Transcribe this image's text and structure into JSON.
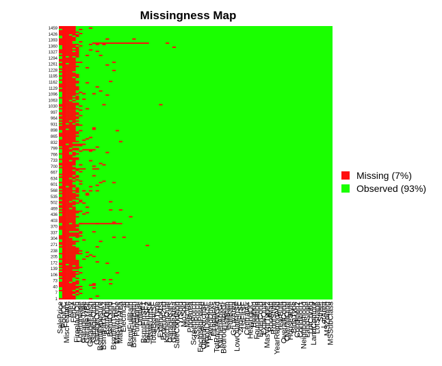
{
  "chart_data": {
    "type": "heatmap",
    "title": "Missingness Map",
    "xlabel": "",
    "ylabel": "",
    "n_rows": 1460,
    "columns": [
      "SalePrice",
      "PoolQC",
      "MiscFeature",
      "Alley",
      "Fence",
      "FireplaceQu",
      "LotFrontage",
      "GarageType",
      "GarageYrBlt",
      "GarageFinish",
      "GarageQual",
      "GarageCond",
      "BsmtExposure",
      "BsmtFinType2",
      "BsmtQual",
      "BsmtCond",
      "BsmtFinType1",
      "MasVnrType",
      "MasVnrArea",
      "Electrical",
      "Id",
      "BsmtFullBath",
      "BsmtHalfBath",
      "Functional",
      "Utilities",
      "BsmtFinSF1",
      "BsmtFinSF2",
      "BsmtUnfSF",
      "TotalBsmtSF",
      "SaleType",
      "Exterior1st",
      "Exterior2nd",
      "KitchenQual",
      "GarageCars",
      "GarageArea",
      "SaleCondition",
      "YrSold",
      "MoSold",
      "MiscVal",
      "PoolArea",
      "ScreenPorch",
      "3SsnPorch",
      "EnclosedPorch",
      "OpenPorchSF",
      "WoodDeckSF",
      "PavedDrive",
      "Fireplaces",
      "TotRmsAbvGrd",
      "KitchenAbvGr",
      "BedroomAbvGr",
      "HalfBath",
      "FullBath",
      "GrLivArea",
      "LowQualFinSF",
      "2ndFlrSF",
      "1stFlrSF",
      "CentralAir",
      "HeatingQC",
      "Heating",
      "Foundation",
      "ExterCond",
      "ExterQual",
      "MasVnrType2",
      "RoofMatl",
      "RoofStyle",
      "YearRemodAdd",
      "YearBuilt",
      "OverallCond",
      "OverallQual",
      "HouseStyle",
      "BldgType",
      "Condition2",
      "Condition1",
      "Neighborhood",
      "LandSlope",
      "LotConfig",
      "LandContour",
      "LotShape",
      "Street",
      "LotArea",
      "MSZoning",
      "MSSubClass"
    ],
    "column_missing_rate": [
      0.5,
      0.995,
      0.963,
      0.932,
      0.807,
      0.473,
      0.166,
      0.054,
      0.054,
      0.054,
      0.054,
      0.054,
      0.026,
      0.026,
      0.025,
      0.025,
      0.025,
      0.008,
      0.008,
      0.001,
      0,
      0.001,
      0.001,
      0.001,
      0.001,
      0.001,
      0.001,
      0.001,
      0.001,
      0.001,
      0.001,
      0.001,
      0.001,
      0.001,
      0.001,
      0,
      0,
      0,
      0,
      0,
      0,
      0,
      0,
      0,
      0,
      0,
      0,
      0,
      0,
      0,
      0,
      0,
      0,
      0,
      0,
      0,
      0,
      0,
      0,
      0,
      0,
      0,
      0,
      0,
      0,
      0,
      0,
      0,
      0,
      0,
      0,
      0,
      0,
      0,
      0,
      0,
      0,
      0,
      0,
      0,
      0,
      0
    ],
    "y_tick_labels": [
      "1459",
      "1426",
      "1393",
      "1360",
      "1327",
      "1294",
      "1261",
      "1228",
      "1195",
      "1162",
      "1129",
      "1096",
      "1063",
      "1030",
      "997",
      "964",
      "931",
      "898",
      "865",
      "832",
      "799",
      "766",
      "733",
      "700",
      "667",
      "634",
      "601",
      "568",
      "535",
      "502",
      "469",
      "436",
      "403",
      "370",
      "337",
      "304",
      "271",
      "238",
      "205",
      "172",
      "139",
      "106",
      "73",
      "40",
      "7",
      "1"
    ],
    "legend": {
      "placement": "right",
      "entries": [
        {
          "label": "Missing (7%)",
          "color": "#FF0D0D"
        },
        {
          "label": "Observed (93%)",
          "color": "#1AFF00"
        }
      ]
    }
  }
}
